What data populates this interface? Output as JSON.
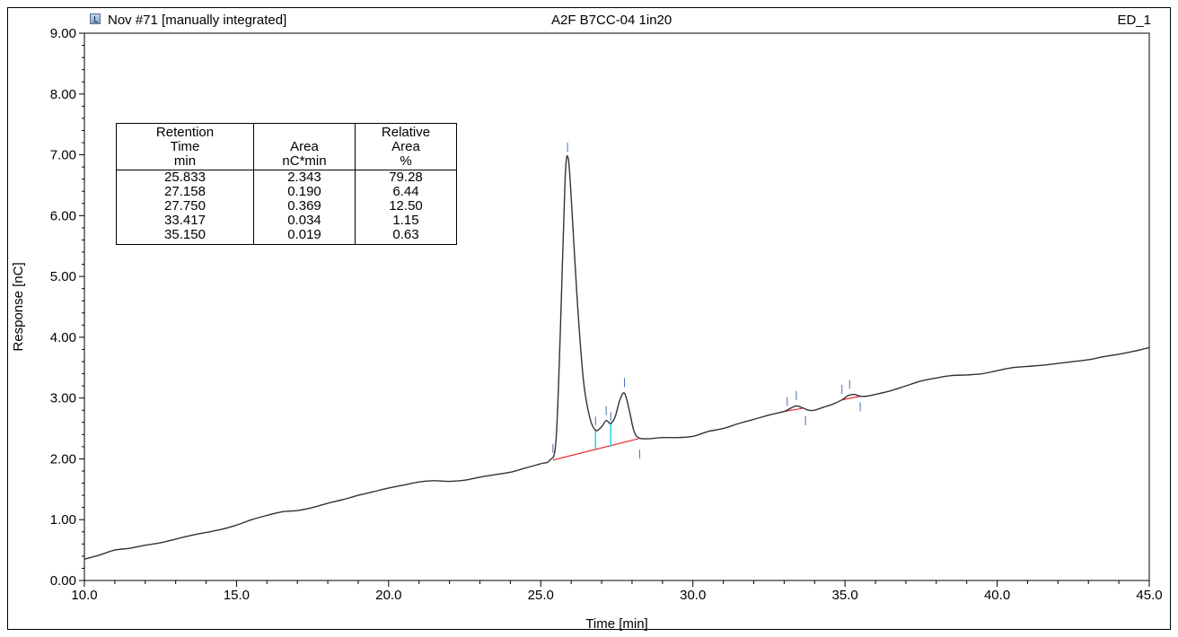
{
  "header": {
    "sample": "Nov #71 [manually integrated]",
    "injection": "A2F B7CC-04 1in20",
    "channel": "ED_1",
    "sample_icon": "sample-icon"
  },
  "peak_table": {
    "columns": [
      [
        "Retention",
        "Time",
        "min"
      ],
      [
        "",
        "Area",
        "nC*min"
      ],
      [
        "Relative",
        "Area",
        "%"
      ]
    ],
    "rows": [
      [
        "25.833",
        "2.343",
        "79.28"
      ],
      [
        "27.158",
        "0.190",
        "6.44"
      ],
      [
        "27.750",
        "0.369",
        "12.50"
      ],
      [
        "33.417",
        "0.034",
        "1.15"
      ],
      [
        "35.150",
        "0.019",
        "0.63"
      ]
    ]
  },
  "chart_data": {
    "type": "line",
    "xlabel": "Time [min]",
    "ylabel": "Response [nC]",
    "xlim": [
      10.0,
      45.0
    ],
    "ylim": [
      0.0,
      9.0
    ],
    "x_ticks": [
      "10.0",
      "15.0",
      "20.0",
      "25.0",
      "30.0",
      "35.0",
      "40.0",
      "45.0"
    ],
    "y_ticks": [
      "0.00",
      "1.00",
      "2.00",
      "3.00",
      "4.00",
      "5.00",
      "6.00",
      "7.00",
      "8.00",
      "9.00"
    ],
    "grid": false,
    "colors": {
      "trace": "#333333",
      "baseline": "#e8262b",
      "marker": "#3f6fb5",
      "drop_line": "#29d3e6"
    },
    "series": [
      {
        "x": [
          10.0,
          10.5,
          11.0,
          11.5,
          12.0,
          12.5,
          13.0,
          13.5,
          14.0,
          14.5,
          15.0,
          15.5,
          16.0,
          16.5,
          17.0,
          17.5,
          18.0,
          18.5,
          19.0,
          19.5,
          20.0,
          20.5,
          21.0,
          21.5,
          22.0,
          22.5,
          23.0,
          23.5,
          24.0,
          24.5,
          25.0,
          25.3,
          25.5,
          25.65,
          25.8,
          25.9,
          26.0,
          26.2,
          26.4,
          26.6,
          26.8,
          27.0,
          27.15,
          27.3,
          27.45,
          27.6,
          27.75,
          27.9,
          28.05,
          28.2,
          28.5,
          29.0,
          29.5,
          30.0,
          30.5,
          31.0,
          31.5,
          32.0,
          32.5,
          33.0,
          33.2,
          33.4,
          33.6,
          33.8,
          34.0,
          34.3,
          34.6,
          34.9,
          35.1,
          35.3,
          35.5,
          35.7,
          36.0,
          36.5,
          37.0,
          37.5,
          38.0,
          38.5,
          39.0,
          39.5,
          40.0,
          40.5,
          41.0,
          41.5,
          42.0,
          42.5,
          43.0,
          43.5,
          44.0,
          44.5,
          45.0
        ],
        "y": [
          0.35,
          0.42,
          0.5,
          0.53,
          0.58,
          0.62,
          0.68,
          0.74,
          0.79,
          0.84,
          0.91,
          1.0,
          1.07,
          1.13,
          1.15,
          1.2,
          1.27,
          1.33,
          1.4,
          1.46,
          1.52,
          1.57,
          1.62,
          1.64,
          1.63,
          1.65,
          1.7,
          1.74,
          1.78,
          1.85,
          1.92,
          1.98,
          2.3,
          4.2,
          6.6,
          6.95,
          6.3,
          4.6,
          3.3,
          2.7,
          2.47,
          2.53,
          2.63,
          2.58,
          2.7,
          2.97,
          3.08,
          2.82,
          2.48,
          2.35,
          2.33,
          2.35,
          2.35,
          2.37,
          2.45,
          2.5,
          2.58,
          2.65,
          2.72,
          2.78,
          2.83,
          2.87,
          2.84,
          2.8,
          2.8,
          2.85,
          2.9,
          2.97,
          3.04,
          3.06,
          3.03,
          3.03,
          3.06,
          3.12,
          3.2,
          3.28,
          3.33,
          3.37,
          3.38,
          3.4,
          3.45,
          3.5,
          3.52,
          3.54,
          3.57,
          3.6,
          3.63,
          3.68,
          3.72,
          3.77,
          3.83
        ]
      }
    ],
    "baselines": [
      {
        "x": [
          25.4,
          28.2
        ],
        "y": [
          1.98,
          2.33
        ]
      },
      {
        "x": [
          33.0,
          33.6
        ],
        "y": [
          2.78,
          2.83
        ]
      },
      {
        "x": [
          34.9,
          35.5
        ],
        "y": [
          2.97,
          3.03
        ]
      }
    ],
    "drop_lines": [
      {
        "x": 26.8,
        "y_top": 2.47,
        "y_bottom": 2.16
      },
      {
        "x": 27.3,
        "y_top": 2.58,
        "y_bottom": 2.2
      }
    ],
    "markers": [
      {
        "x": 25.4,
        "y": 2.1,
        "dir": "up"
      },
      {
        "x": 25.88,
        "y": 7.05,
        "dir": "up"
      },
      {
        "x": 26.8,
        "y": 2.55,
        "dir": "up"
      },
      {
        "x": 27.15,
        "y": 2.72,
        "dir": "up"
      },
      {
        "x": 27.3,
        "y": 2.62,
        "dir": "up"
      },
      {
        "x": 27.75,
        "y": 3.18,
        "dir": "up"
      },
      {
        "x": 28.25,
        "y": 2.15,
        "dir": "down"
      },
      {
        "x": 33.1,
        "y": 2.87,
        "dir": "up"
      },
      {
        "x": 33.4,
        "y": 2.97,
        "dir": "up"
      },
      {
        "x": 33.7,
        "y": 2.7,
        "dir": "down"
      },
      {
        "x": 34.9,
        "y": 3.07,
        "dir": "up"
      },
      {
        "x": 35.15,
        "y": 3.15,
        "dir": "up"
      },
      {
        "x": 35.5,
        "y": 2.93,
        "dir": "down"
      }
    ]
  }
}
